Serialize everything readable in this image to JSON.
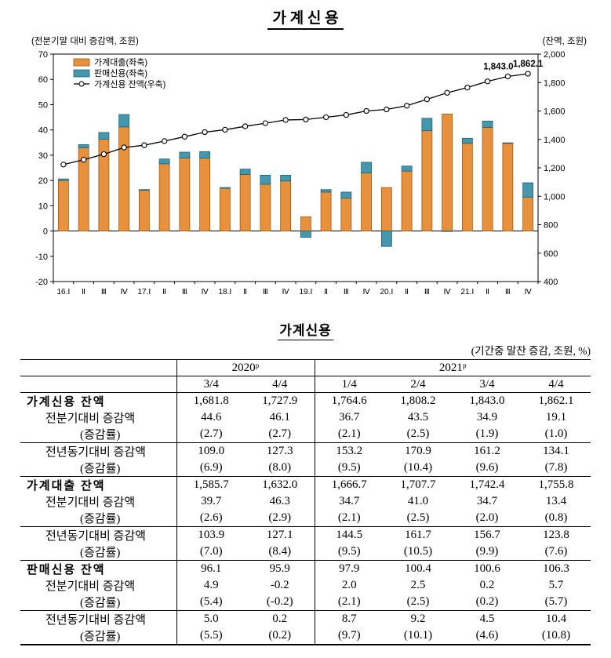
{
  "page_title": "가 계 신 용",
  "chart": {
    "left_caption": "(전분기말 대비 증감액, 조원)",
    "right_caption": "(잔액, 조원)"
  },
  "chart_data": {
    "type": "bar+line",
    "title": "가 계 신 용",
    "categories": [
      "16.Ⅰ",
      "Ⅱ",
      "Ⅲ",
      "Ⅳ",
      "17.Ⅰ",
      "Ⅱ",
      "Ⅲ",
      "Ⅳ",
      "18.Ⅰ",
      "Ⅱ",
      "Ⅲ",
      "Ⅳ",
      "19.Ⅰ",
      "Ⅱ",
      "Ⅲ",
      "Ⅳ",
      "20.Ⅰ",
      "Ⅱ",
      "Ⅲ",
      "Ⅳ",
      "21.Ⅰ",
      "Ⅱ",
      "Ⅲ",
      "Ⅳ"
    ],
    "series": [
      {
        "name": "가계대출(좌축)",
        "type": "bar",
        "axis": "left",
        "stacked": true,
        "color": "#E8913C",
        "border": "#A05A12",
        "values": [
          20.0,
          32.9,
          36.3,
          41.2,
          16.1,
          26.6,
          28.9,
          28.8,
          16.9,
          22.4,
          18.5,
          19.8,
          5.6,
          15.4,
          13.0,
          23.0,
          17.2,
          23.7,
          39.7,
          46.3,
          34.7,
          41.0,
          34.7,
          13.4
        ]
      },
      {
        "name": "판매신용(좌축)",
        "type": "bar",
        "axis": "left",
        "stacked": true,
        "color": "#4497AD",
        "border": "#1F6175",
        "values": [
          0.6,
          1.3,
          2.7,
          4.9,
          0.3,
          1.9,
          2.3,
          2.6,
          0.3,
          2.1,
          3.6,
          2.3,
          -2.5,
          1.0,
          2.4,
          4.2,
          -6.1,
          2.0,
          4.9,
          -0.2,
          2.0,
          2.5,
          0.2,
          5.7
        ]
      },
      {
        "name": "가계신용 잔액(우축)",
        "type": "line",
        "axis": "right",
        "color": "#000000",
        "values": [
          1223,
          1257,
          1296,
          1343,
          1359,
          1388,
          1419,
          1451,
          1468,
          1492,
          1514,
          1537,
          1540,
          1556,
          1572,
          1600,
          1611,
          1637,
          1681.8,
          1727.9,
          1764.6,
          1808.2,
          1843.0,
          1862.1
        ]
      }
    ],
    "left_axis": {
      "min": -20,
      "max": 70,
      "step": 10,
      "caption": "(전분기말 대비 증감액, 조원)"
    },
    "right_axis": {
      "min": 400,
      "max": 2000,
      "step": 200,
      "caption": "(잔액, 조원)"
    },
    "annotations": [
      {
        "category_index": 22,
        "text": "1,843.0"
      },
      {
        "category_index": 23,
        "text": "1,862.1"
      }
    ],
    "legend_position": "top-left-inside",
    "grid": false
  },
  "table": {
    "title": "가계신용",
    "note": "(기간중 말잔 증감, 조원, %)",
    "col_groups": [
      {
        "label": "2020ᵖ",
        "span": 2
      },
      {
        "label": "2021ᵖ",
        "span": 4
      }
    ],
    "sub_headers": [
      "3/4",
      "4/4",
      "1/4",
      "2/4",
      "3/4",
      "4/4"
    ],
    "rows": [
      {
        "label": "가계신용 잔액",
        "style": "sec",
        "rule": "",
        "values": [
          "1,681.8",
          "1,727.9",
          "1,764.6",
          "1,808.2",
          "1,843.0",
          "1,862.1"
        ]
      },
      {
        "label": "전분기대비 증감액",
        "style": "sub",
        "rule": "",
        "values": [
          "44.6",
          "46.1",
          "36.7",
          "43.5",
          "34.9",
          "19.1"
        ]
      },
      {
        "label": "(증감률)",
        "style": "rate",
        "rule": "thin",
        "values": [
          "(2.7)",
          "(2.7)",
          "(2.1)",
          "(2.5)",
          "(1.9)",
          "(1.0)"
        ]
      },
      {
        "label": "전년동기대비 증감액",
        "style": "sub",
        "rule": "",
        "values": [
          "109.0",
          "127.3",
          "153.2",
          "170.9",
          "161.2",
          "134.1"
        ]
      },
      {
        "label": "(증감률)",
        "style": "rate",
        "rule": "section",
        "values": [
          "(6.9)",
          "(8.0)",
          "(9.5)",
          "(10.4)",
          "(9.6)",
          "(7.8)"
        ]
      },
      {
        "label": "가계대출 잔액",
        "style": "sec",
        "rule": "",
        "values": [
          "1,585.7",
          "1,632.0",
          "1,666.7",
          "1,707.7",
          "1,742.4",
          "1,755.8"
        ]
      },
      {
        "label": "전분기대비 증감액",
        "style": "sub",
        "rule": "",
        "values": [
          "39.7",
          "46.3",
          "34.7",
          "41.0",
          "34.7",
          "13.4"
        ]
      },
      {
        "label": "(증감률)",
        "style": "rate",
        "rule": "thin",
        "values": [
          "(2.6)",
          "(2.9)",
          "(2.1)",
          "(2.5)",
          "(2.0)",
          "(0.8)"
        ]
      },
      {
        "label": "전년동기대비 증감액",
        "style": "sub",
        "rule": "",
        "values": [
          "103.9",
          "127.1",
          "144.5",
          "161.7",
          "156.7",
          "123.8"
        ]
      },
      {
        "label": "(증감률)",
        "style": "rate",
        "rule": "section",
        "values": [
          "(7.0)",
          "(8.4)",
          "(9.5)",
          "(10.5)",
          "(9.9)",
          "(7.6)"
        ]
      },
      {
        "label": "판매신용 잔액",
        "style": "sec",
        "rule": "",
        "values": [
          "96.1",
          "95.9",
          "97.9",
          "100.4",
          "100.6",
          "106.3"
        ]
      },
      {
        "label": "전분기대비 증감액",
        "style": "sub",
        "rule": "",
        "values": [
          "4.9",
          "-0.2",
          "2.0",
          "2.5",
          "0.2",
          "5.7"
        ]
      },
      {
        "label": "(증감률)",
        "style": "rate",
        "rule": "thin",
        "values": [
          "(5.4)",
          "(-0.2)",
          "(2.1)",
          "(2.5)",
          "(0.2)",
          "(5.7)"
        ]
      },
      {
        "label": "전년동기대비 증감액",
        "style": "sub",
        "rule": "",
        "values": [
          "5.0",
          "0.2",
          "8.7",
          "9.2",
          "4.5",
          "10.4"
        ]
      },
      {
        "label": "(증감률)",
        "style": "rate",
        "rule": "",
        "values": [
          "(5.5)",
          "(0.2)",
          "(9.7)",
          "(10.1)",
          "(4.6)",
          "(10.8)"
        ]
      }
    ]
  }
}
